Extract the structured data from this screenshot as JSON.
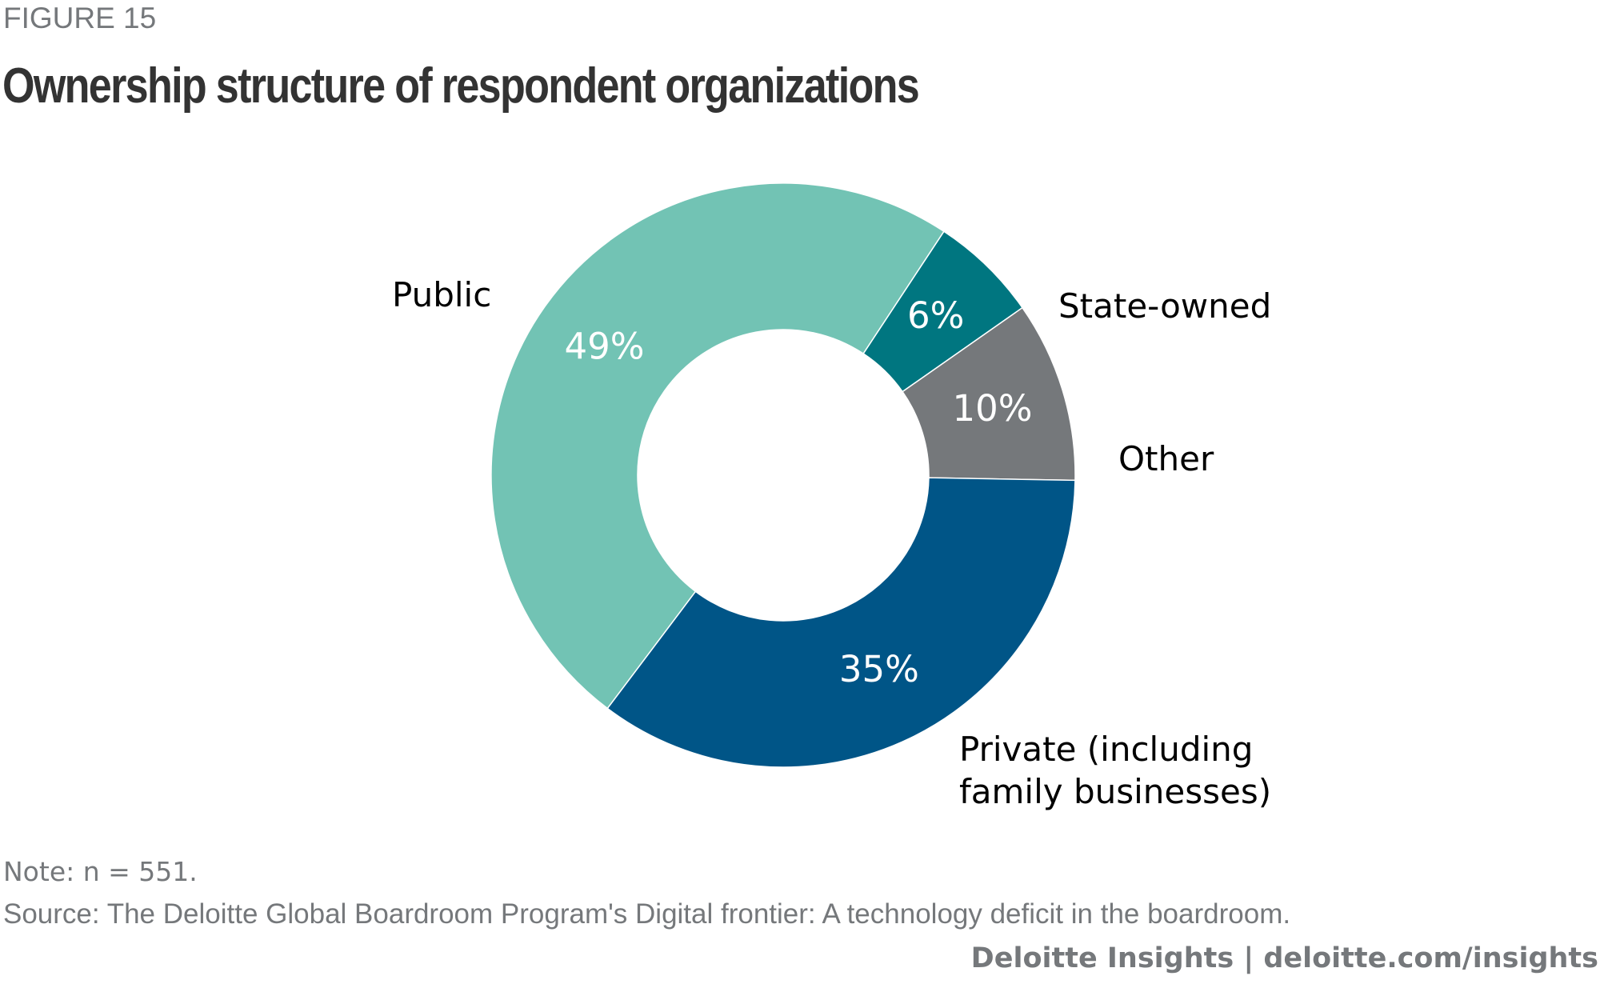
{
  "figure_label": "FIGURE 15",
  "chart_data": {
    "type": "pie",
    "donut": true,
    "title": "Ownership structure of respondent organizations",
    "slices": [
      {
        "name": "Public",
        "value": 49,
        "label": "49%",
        "color": "#72c3b4"
      },
      {
        "name": "State-owned",
        "value": 6,
        "label": "6%",
        "color": "#007680"
      },
      {
        "name": "Other",
        "value": 10,
        "label": "10%",
        "color": "#75787b"
      },
      {
        "name": "Private (including family businesses)",
        "value": 35,
        "label": "35%",
        "color": "#005587"
      }
    ]
  },
  "legend_labels": {
    "public": "Public",
    "state_owned": "State-owned",
    "other": "Other",
    "private_line1": "Private (including",
    "private_line2": "family businesses)"
  },
  "note": "Note: n = 551.",
  "source": "Source: The Deloitte Global Boardroom Program's Digital frontier: A technology deficit in the boardroom.",
  "credit": "Deloitte Insights | deloitte.com/insights"
}
